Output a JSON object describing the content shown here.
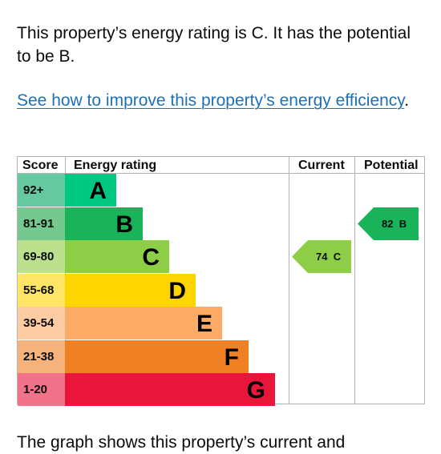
{
  "intro": "This property’s energy rating is C. It has the potential to be B.",
  "link": {
    "text": "See how to improve this property’s energy efficiency",
    "suffix": "."
  },
  "table": {
    "headers": {
      "score": "Score",
      "rating": "Energy rating",
      "current": "Current",
      "potential": "Potential"
    },
    "bands": [
      {
        "score": "92+",
        "letter": "A",
        "color": "#00c781",
        "score_bg": "#66c8a0"
      },
      {
        "score": "81-91",
        "letter": "B",
        "color": "#19b459",
        "score_bg": "#75c98f"
      },
      {
        "score": "69-80",
        "letter": "C",
        "color": "#8dce46",
        "score_bg": "#bbe18f"
      },
      {
        "score": "55-68",
        "letter": "D",
        "color": "#ffd500",
        "score_bg": "#ffe566"
      },
      {
        "score": "39-54",
        "letter": "E",
        "color": "#fcaa65",
        "score_bg": "#fdcca3"
      },
      {
        "score": "21-38",
        "letter": "F",
        "color": "#ef8023",
        "score_bg": "#f5b37b"
      },
      {
        "score": "1-20",
        "letter": "G",
        "color": "#e9153b",
        "score_bg": "#f27389"
      }
    ],
    "current": {
      "value": "74",
      "letter": "C",
      "band_index": 2,
      "color": "#8dce46"
    },
    "potential": {
      "value": "82",
      "letter": "B",
      "band_index": 1,
      "color": "#19b459"
    }
  },
  "footer": "The graph shows this property’s current and"
}
